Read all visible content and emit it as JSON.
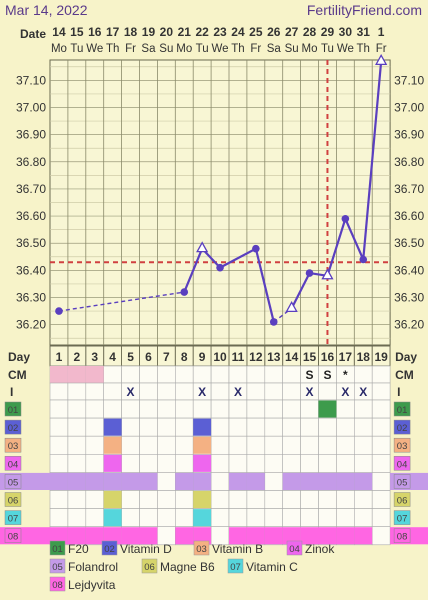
{
  "header": {
    "date": "Mar 14, 2022",
    "site": "FertilityFriend.com",
    "date_label": "Date"
  },
  "chart_data": {
    "type": "line",
    "ylim": [
      36.125,
      37.175
    ],
    "y_ticks": [
      "36.20",
      "36.30",
      "36.40",
      "36.50",
      "36.60",
      "36.70",
      "36.80",
      "36.90",
      "37.00",
      "37.10"
    ],
    "dates": [
      "14",
      "15",
      "16",
      "17",
      "18",
      "19",
      "20",
      "21",
      "22",
      "23",
      "24",
      "25",
      "26",
      "27",
      "28",
      "29",
      "30",
      "31",
      "1"
    ],
    "weekdays": [
      "Mo",
      "Tu",
      "We",
      "Th",
      "Fr",
      "Sa",
      "Su",
      "Mo",
      "Tu",
      "We",
      "Th",
      "Fr",
      "Sa",
      "Su",
      "Mo",
      "Tu",
      "We",
      "Th",
      "Fr"
    ],
    "cycle_days": [
      "1",
      "2",
      "3",
      "4",
      "5",
      "6",
      "7",
      "8",
      "9",
      "10",
      "11",
      "12",
      "13",
      "14",
      "15",
      "16",
      "17",
      "18",
      "19"
    ],
    "temperatures": [
      {
        "day": 1,
        "temp": 36.25,
        "marker": "circle"
      },
      {
        "day": 8,
        "temp": 36.32,
        "marker": "circle"
      },
      {
        "day": 9,
        "temp": 36.48,
        "marker": "triangle"
      },
      {
        "day": 10,
        "temp": 36.41,
        "marker": "circle"
      },
      {
        "day": 12,
        "temp": 36.48,
        "marker": "circle"
      },
      {
        "day": 13,
        "temp": 36.21,
        "marker": "circle"
      },
      {
        "day": 14,
        "temp": 36.26,
        "marker": "triangle"
      },
      {
        "day": 15,
        "temp": 36.39,
        "marker": "circle"
      },
      {
        "day": 16,
        "temp": 36.38,
        "marker": "triangle"
      },
      {
        "day": 17,
        "temp": 36.59,
        "marker": "circle"
      },
      {
        "day": 18,
        "temp": 36.44,
        "marker": "circle"
      },
      {
        "day": 19,
        "temp": 37.17,
        "marker": "triangle"
      }
    ],
    "dashed_segments": [
      [
        1,
        8
      ],
      [
        13,
        14
      ]
    ],
    "coverline": 36.43,
    "ovulation_day": 16,
    "line_color": "#5a3fbf",
    "coverline_color": "#d04040",
    "rows": {
      "day_label": "Day",
      "cm_label": "CM",
      "i_label": "I",
      "cm_pink_days": [
        1,
        2,
        3
      ],
      "cm_pink_color": "#f2b8cc",
      "cm_marks": [
        {
          "day": 15,
          "mark": "S"
        },
        {
          "day": 16,
          "mark": "S"
        },
        {
          "day": 17,
          "mark": "*"
        }
      ],
      "i_marks": [
        {
          "day": 5,
          "mark": "X"
        },
        {
          "day": 9,
          "mark": "X"
        },
        {
          "day": 11,
          "mark": "X"
        },
        {
          "day": 15,
          "mark": "X"
        },
        {
          "day": 17,
          "mark": "X"
        },
        {
          "day": 18,
          "mark": "X"
        }
      ]
    },
    "supplements": [
      {
        "code": "01",
        "name": "F20",
        "color": "#3d9b4c",
        "days": [
          16
        ]
      },
      {
        "code": "02",
        "name": "Vitamin D",
        "color": "#5b5fd4",
        "days": [
          4,
          9
        ]
      },
      {
        "code": "03",
        "name": "Vitamin B",
        "color": "#f4b183",
        "days": [
          4,
          9
        ]
      },
      {
        "code": "04",
        "name": "Zinok",
        "color": "#ee66ee",
        "days": [
          4,
          9
        ]
      },
      {
        "code": "05",
        "name": "Folandrol",
        "color": "#c49ae8",
        "days": [
          1,
          2,
          3,
          4,
          5,
          6,
          8,
          9,
          11,
          12,
          14,
          15,
          16,
          17,
          18
        ]
      },
      {
        "code": "06",
        "name": "Magne B6",
        "color": "#d6d46a",
        "days": [
          4,
          9
        ]
      },
      {
        "code": "07",
        "name": "Vitamin C",
        "color": "#55d6dc",
        "days": [
          4,
          9
        ]
      },
      {
        "code": "08",
        "name": "Lejdyvita",
        "color": "#ff66e3",
        "days": [
          1,
          2,
          3,
          4,
          5,
          6,
          8,
          9,
          11,
          12,
          13,
          14,
          15,
          16,
          17,
          18
        ]
      }
    ]
  }
}
